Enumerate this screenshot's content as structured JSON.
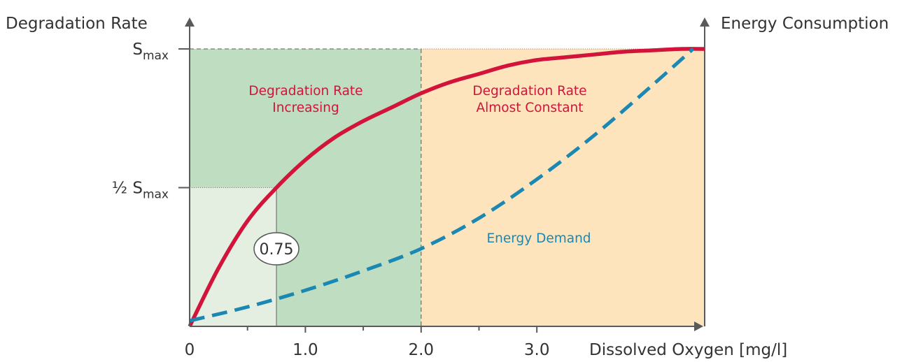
{
  "chart_data": {
    "type": "line",
    "y_axis_label": "Degradation Rate",
    "y2_axis_label": "Energy Consumption",
    "x_axis_label": "Dissolved Oxygen [mg/l]",
    "x_tick_labels": [
      {
        "x": 0,
        "label": "0"
      },
      {
        "x": 1.0,
        "label": "1.0"
      },
      {
        "x": 2.0,
        "label": "2.0"
      },
      {
        "x": 3.0,
        "label": "3.0"
      }
    ],
    "x_minor_ticks": [
      0.5,
      1.5,
      2.5
    ],
    "xlim": [
      0,
      4.45
    ],
    "y_ticks": [
      {
        "y": 0.5,
        "main": "½ S",
        "sub": "max"
      },
      {
        "y": 1.0,
        "main": "S",
        "sub": "max"
      }
    ],
    "ylim": [
      0,
      1.0
    ],
    "regions": [
      {
        "x_from": 0,
        "x_to": 2.0,
        "color": "#bfddc0",
        "label_lines": [
          "Degradation Rate",
          "Increasing"
        ]
      },
      {
        "x_from": 2.0,
        "x_to": 4.45,
        "color": "#fde4bc",
        "label_lines": [
          "Degradation Rate",
          "Almost Constant"
        ]
      }
    ],
    "half_saturation": {
      "x": 0.75,
      "y": 0.5,
      "label": "0.75",
      "color": "#e4efe2"
    },
    "series": [
      {
        "name": "Degradation Rate",
        "color": "#d2143a",
        "style": "solid",
        "x": [
          0,
          0.25,
          0.5,
          0.75,
          1.0,
          1.25,
          1.5,
          1.75,
          2.0,
          2.25,
          2.5,
          2.75,
          3.0,
          3.25,
          3.5,
          3.75,
          4.0,
          4.25,
          4.45
        ],
        "values": [
          0,
          0.21,
          0.38,
          0.5,
          0.6,
          0.68,
          0.74,
          0.79,
          0.84,
          0.88,
          0.91,
          0.94,
          0.96,
          0.97,
          0.98,
          0.99,
          0.995,
          1.0,
          1.0
        ]
      },
      {
        "name": "Energy Demand",
        "color": "#1a88b2",
        "style": "dashed",
        "label": "Energy Demand",
        "x": [
          0,
          0.5,
          1.0,
          1.5,
          2.0,
          2.5,
          3.0,
          3.5,
          4.0,
          4.35
        ],
        "values": [
          0.02,
          0.07,
          0.13,
          0.2,
          0.28,
          0.39,
          0.53,
          0.69,
          0.87,
          1.0
        ]
      }
    ],
    "colors": {
      "axis": "#5a5a5a",
      "label_text": "#333333",
      "reference_line": "#777777",
      "callout_border": "#555555"
    }
  }
}
